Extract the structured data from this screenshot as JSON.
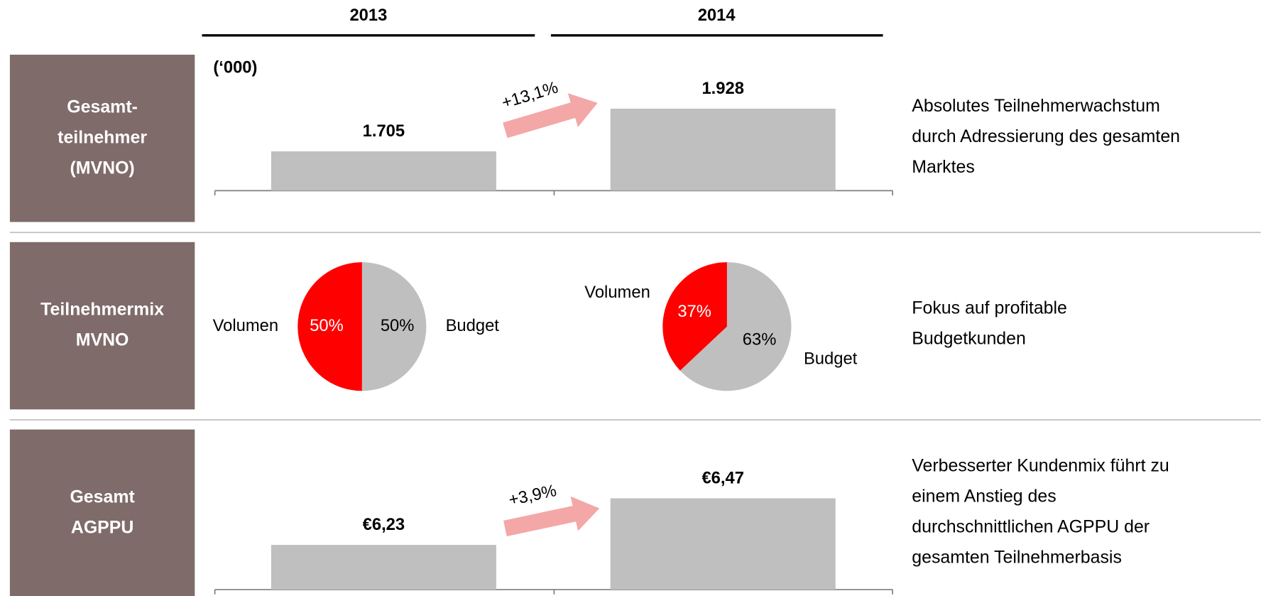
{
  "columns": [
    "2013",
    "2014"
  ],
  "rows": [
    {
      "label": [
        "Gesamt-",
        "teilnehmer",
        "(MVNO)"
      ],
      "comment": [
        "Absolutes Teilnehmerwachstum",
        "durch Adressierung des gesamten",
        "Marktes"
      ]
    },
    {
      "label": [
        "Teilnehmermix",
        "MVNO"
      ],
      "comment": [
        "Fokus auf profitable",
        "Budgetkunden"
      ]
    },
    {
      "label": [
        "Gesamt",
        "AGPPU"
      ],
      "comment": [
        "Verbesserter Kundenmix führt zu",
        "einem Anstieg des",
        "durchschnittlichen AGPPU der",
        "gesamten Teilnehmerbasis"
      ]
    }
  ],
  "chart_data": [
    {
      "type": "bar",
      "subtitle": "(‘000)",
      "values": [
        1705,
        1928
      ],
      "value_labels": [
        "1.705",
        "1.928"
      ],
      "color": "#bfbfbf",
      "ylim": [
        1500,
        2000
      ],
      "annotation": "+13,1%"
    },
    {
      "type": "pie",
      "categories": [
        "Volumen",
        "Budget"
      ],
      "values": [
        50,
        50
      ],
      "value_labels": [
        "50%",
        "50%"
      ],
      "colors": [
        "#ff0000",
        "#bfbfbf"
      ]
    },
    {
      "type": "pie",
      "categories": [
        "Volumen",
        "Budget"
      ],
      "values": [
        37,
        63
      ],
      "value_labels": [
        "37%",
        "63%"
      ],
      "colors": [
        "#ff0000",
        "#bfbfbf"
      ]
    },
    {
      "type": "bar",
      "values": [
        6.23,
        6.47
      ],
      "value_labels": [
        "€6,23",
        "€6,47"
      ],
      "color": "#bfbfbf",
      "ylim": [
        6,
        6.7
      ],
      "annotation": "+3,9%"
    }
  ]
}
